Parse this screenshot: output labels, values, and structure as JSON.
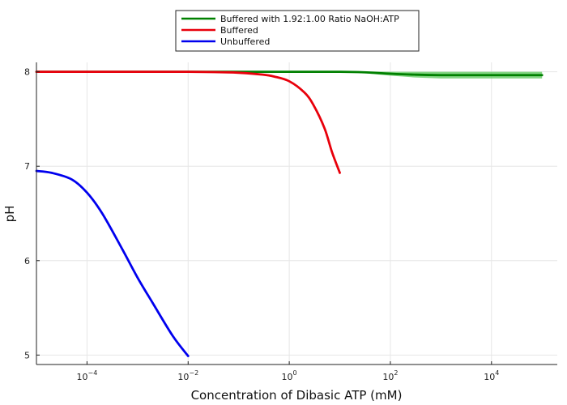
{
  "chart_data": {
    "type": "line",
    "xlabel": "Concentration of Dibasic ATP (mM)",
    "ylabel": "pH",
    "x_scale": "log10",
    "xlim": [
      1e-05,
      200000.0
    ],
    "ylim": [
      4.9,
      8.1
    ],
    "x_ticks": [
      {
        "base": "10",
        "exp": "−4",
        "value": 0.0001
      },
      {
        "base": "10",
        "exp": "−2",
        "value": 0.01
      },
      {
        "base": "10",
        "exp": "0",
        "value": 1
      },
      {
        "base": "10",
        "exp": "2",
        "value": 100
      },
      {
        "base": "10",
        "exp": "4",
        "value": 10000
      }
    ],
    "y_ticks": [
      "5",
      "6",
      "7",
      "8"
    ],
    "grid": true,
    "legend_position": "top",
    "series": [
      {
        "name": "Buffered with 1.92:1.00 Ratio NaOH:ATP",
        "color": "#008000",
        "band_color": "#5cc85c",
        "x": [
          1e-05,
          0.001,
          0.1,
          1,
          10,
          30,
          100,
          300,
          1000,
          10000,
          100000
        ],
        "y": [
          8.0,
          8.0,
          8.0,
          8.0,
          8.0,
          7.995,
          7.98,
          7.97,
          7.965,
          7.965,
          7.965
        ],
        "band": [
          0,
          0,
          0,
          0,
          0.002,
          0.01,
          0.02,
          0.03,
          0.035,
          0.035,
          0.035
        ]
      },
      {
        "name": "Buffered",
        "color": "#e8000b",
        "x": [
          1e-05,
          0.001,
          0.01,
          0.05,
          0.1,
          0.3,
          0.5,
          1,
          2,
          3,
          5,
          7,
          10
        ],
        "y": [
          8.0,
          8.0,
          8.0,
          7.995,
          7.99,
          7.97,
          7.95,
          7.9,
          7.78,
          7.65,
          7.4,
          7.15,
          6.93
        ]
      },
      {
        "name": "Unbuffered",
        "color": "#0000ee",
        "x": [
          1e-05,
          2e-05,
          5e-05,
          0.0001,
          0.0002,
          0.0005,
          0.001,
          0.002,
          0.005,
          0.01
        ],
        "y": [
          6.95,
          6.93,
          6.86,
          6.72,
          6.5,
          6.12,
          5.82,
          5.55,
          5.2,
          4.99
        ]
      }
    ]
  }
}
